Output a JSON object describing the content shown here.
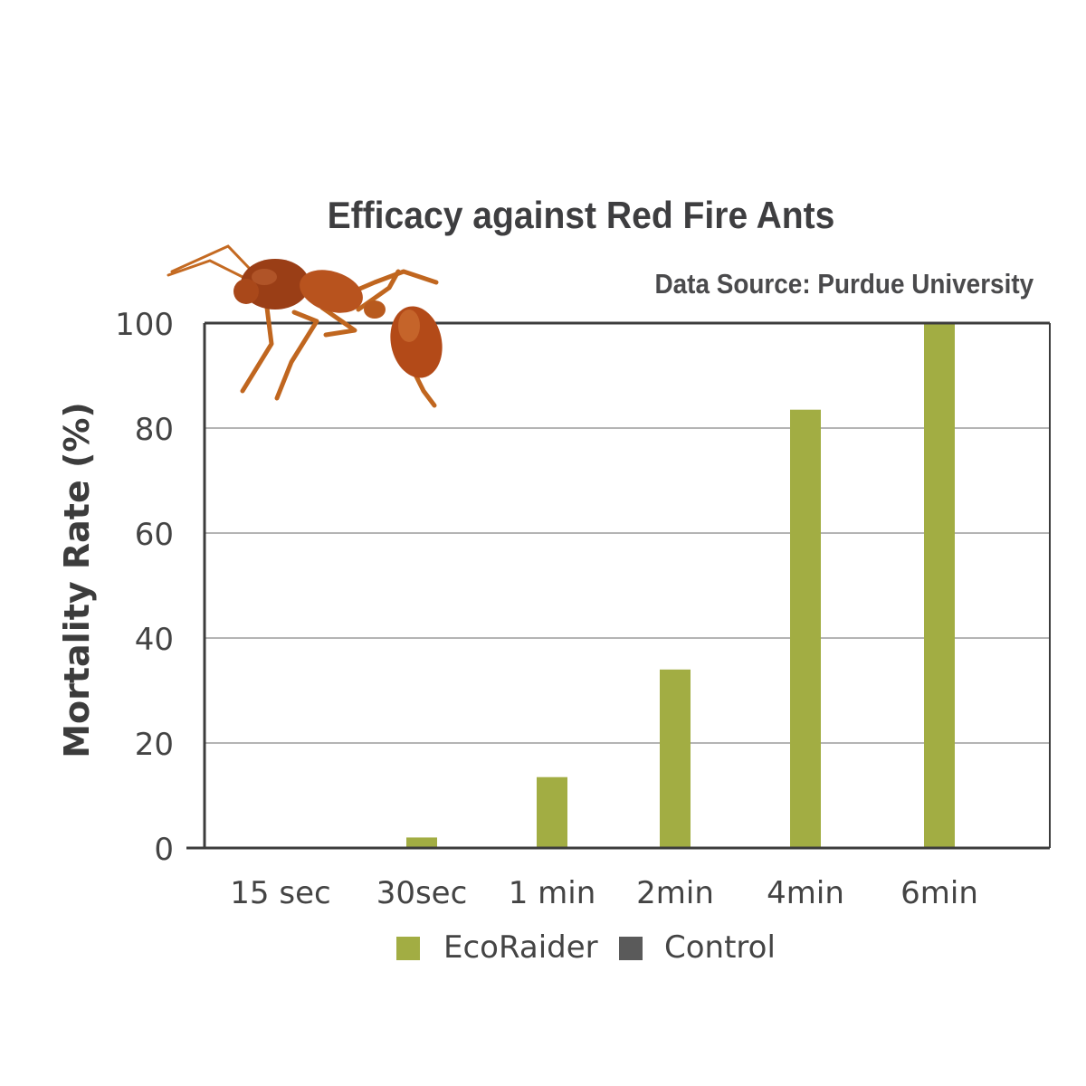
{
  "colors": {
    "ecoraider": "#a2ad43",
    "control": "#5a5a5a",
    "grid": "#b4b4b4",
    "axis": "#3c3c3c",
    "text": "#444444",
    "ant_body": "#b8531e",
    "ant_head": "#9a3e16"
  },
  "icons": [
    "fire-ant-illustration"
  ],
  "chart_data": {
    "type": "bar",
    "title": "Efficacy against Red Fire Ants",
    "subtitle": "Data Source: Purdue University",
    "xlabel": "",
    "ylabel": "Mortality Rate (%)",
    "ylim": [
      0,
      100
    ],
    "yticks": [
      0,
      20,
      40,
      60,
      80,
      100
    ],
    "categories": [
      "15 sec",
      "30sec",
      "1 min",
      "2min",
      "4min",
      "6min"
    ],
    "series": [
      {
        "name": "EcoRaider",
        "values": [
          0,
          2,
          13.5,
          34,
          83.5,
          100
        ]
      },
      {
        "name": "Control",
        "values": [
          0,
          0,
          0,
          0,
          0,
          0
        ]
      }
    ],
    "grid": true,
    "legend": "bottom-center"
  }
}
